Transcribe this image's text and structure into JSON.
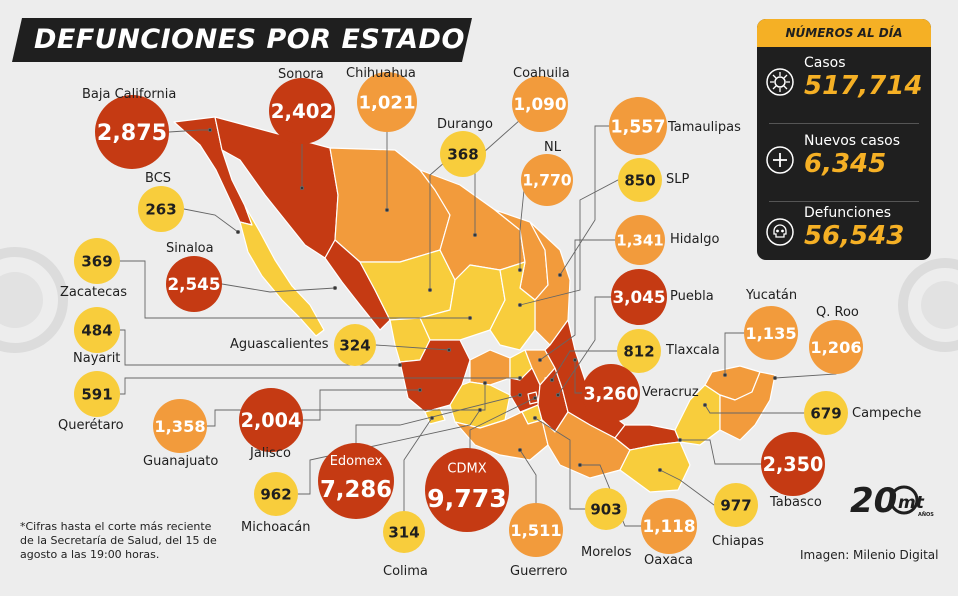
{
  "title": "DEFUNCIONES POR ESTADO",
  "stats": {
    "header": "NÚMEROS AL DÍA",
    "rows": [
      {
        "label": "Casos",
        "value": "517,714",
        "icon": "virus-icon"
      },
      {
        "label": "Nuevos casos",
        "value": "6,345",
        "icon": "plus-icon"
      },
      {
        "label": "Defunciones",
        "value": "56,543",
        "icon": "skull-icon"
      }
    ]
  },
  "footnote": "*Cifras hasta el corte más reciente de la Secretaría de Salud, del 15 de agosto a las 19:00 horas.",
  "credit": "Imagen: Milenio Digital",
  "logo": {
    "number": "20",
    "brand": "mt",
    "sub": "AÑOS"
  },
  "colors": {
    "dark": "#c53a13",
    "medium": "#f29b3c",
    "light": "#f8cd3c",
    "panel": "#1f1f1f",
    "accent": "#f5b025"
  },
  "states": [
    {
      "name": "Baja California",
      "value": "2,875",
      "level": "dark"
    },
    {
      "name": "Sonora",
      "value": "2,402",
      "level": "dark"
    },
    {
      "name": "Chihuahua",
      "value": "1,021",
      "level": "medium"
    },
    {
      "name": "Coahuila",
      "value": "1,090",
      "level": "medium"
    },
    {
      "name": "Durango",
      "value": "368",
      "level": "light"
    },
    {
      "name": "NL",
      "value": "1,770",
      "level": "medium"
    },
    {
      "name": "Tamaulipas",
      "value": "1,557",
      "level": "medium"
    },
    {
      "name": "SLP",
      "value": "850",
      "level": "light"
    },
    {
      "name": "BCS",
      "value": "263",
      "level": "light"
    },
    {
      "name": "Sinaloa",
      "value": "2,545",
      "level": "dark"
    },
    {
      "name": "Hidalgo",
      "value": "1,341",
      "level": "medium"
    },
    {
      "name": "Zacatecas",
      "value": "369",
      "level": "light"
    },
    {
      "name": "Puebla",
      "value": "3,045",
      "level": "dark"
    },
    {
      "name": "Nayarit",
      "value": "484",
      "level": "light"
    },
    {
      "name": "Aguascalientes",
      "value": "324",
      "level": "light"
    },
    {
      "name": "Tlaxcala",
      "value": "812",
      "level": "light"
    },
    {
      "name": "Yucatán",
      "value": "1,135",
      "level": "medium"
    },
    {
      "name": "Q. Roo",
      "value": "1,206",
      "level": "medium"
    },
    {
      "name": "Veracruz",
      "value": "3,260",
      "level": "dark"
    },
    {
      "name": "Querétaro",
      "value": "591",
      "level": "light"
    },
    {
      "name": "Guanajuato",
      "value": "1,358",
      "level": "medium"
    },
    {
      "name": "Jalisco",
      "value": "2,004",
      "level": "dark"
    },
    {
      "name": "Campeche",
      "value": "679",
      "level": "light"
    },
    {
      "name": "Edomex",
      "value": "7,286",
      "level": "dark"
    },
    {
      "name": "CDMX",
      "value": "9,773",
      "level": "dark"
    },
    {
      "name": "Tabasco",
      "value": "2,350",
      "level": "dark"
    },
    {
      "name": "Michoacán",
      "value": "962",
      "level": "light"
    },
    {
      "name": "Morelos",
      "value": "903",
      "level": "light"
    },
    {
      "name": "Chiapas",
      "value": "977",
      "level": "light"
    },
    {
      "name": "Colima",
      "value": "314",
      "level": "light"
    },
    {
      "name": "Guerrero",
      "value": "1,511",
      "level": "medium"
    },
    {
      "name": "Oaxaca",
      "value": "1,118",
      "level": "medium"
    }
  ]
}
